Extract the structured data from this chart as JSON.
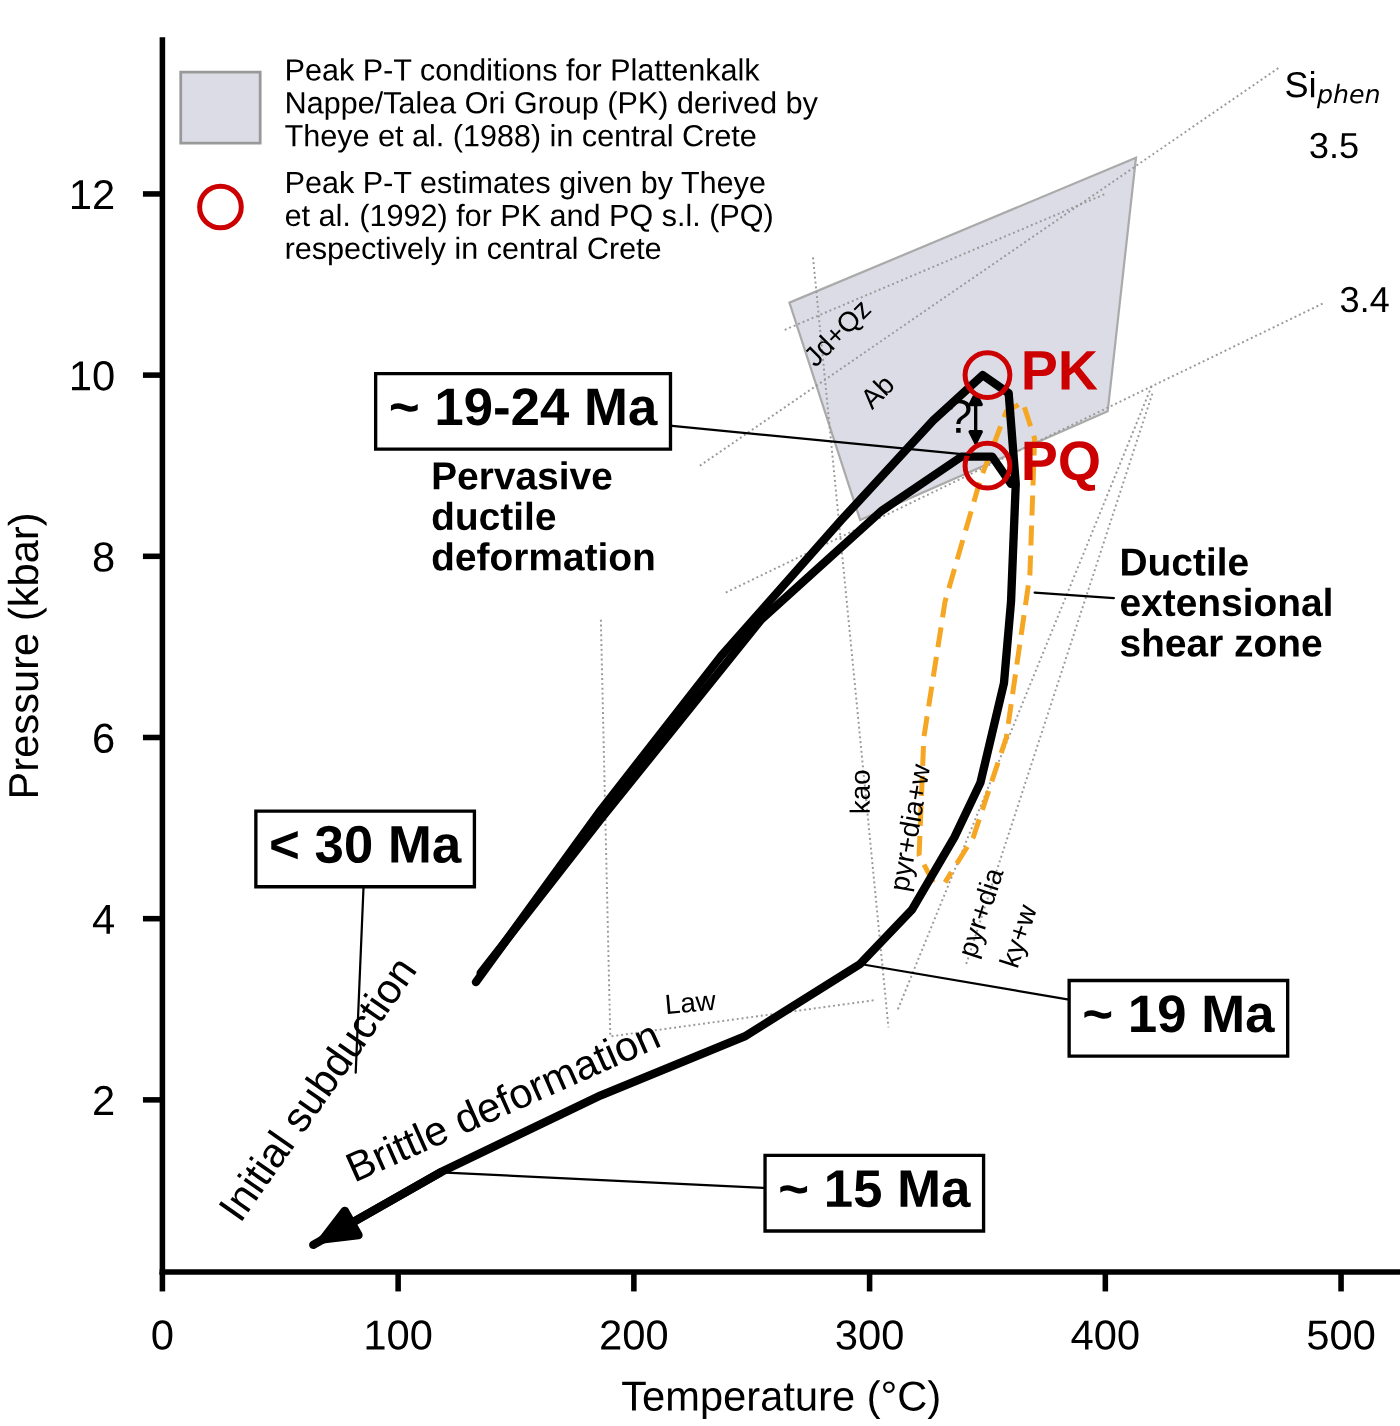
{
  "chart_data": {
    "type": "line",
    "xlabel": "Temperature (°C)",
    "ylabel": "Pressure (kbar)",
    "xlim": [
      0,
      525
    ],
    "ylim": [
      0.1,
      13.7
    ],
    "xticks": [
      0,
      100,
      200,
      300,
      400,
      500
    ],
    "yticks": [
      2,
      4,
      6,
      8,
      10,
      12
    ],
    "grid": false,
    "legend": "top left",
    "series": [
      {
        "type": "area",
        "name": "Peak P-T conditions for Plattenkalk\nNappe/Talea Ori Group (PK) derived by\nTheye et al. (1988) in central Crete",
        "color": "#dcdce6",
        "x": [
          266,
          413,
          401,
          296
        ],
        "values": [
          10.8,
          12.4,
          9.6,
          8.4
        ]
      },
      {
        "color": "#999999",
        "line_style": "dotted",
        "x": [
          228,
          474
        ],
        "values": [
          9.0,
          13.4
        ]
      },
      {
        "color": "#999999",
        "line_style": "dotted",
        "x": [
          239,
          493
        ],
        "values": [
          7.6,
          10.8
        ]
      },
      {
        "color": "#999999",
        "line_style": "dotted",
        "x": [
          264,
          400
        ],
        "values": [
          10.5,
          12.0
        ]
      },
      {
        "color": "#999999",
        "line_style": "dotted",
        "x": [
          276,
          308
        ],
        "values": [
          11.3,
          2.8
        ]
      },
      {
        "color": "#999999",
        "line_style": "dotted",
        "x": [
          312,
          420
        ],
        "values": [
          3.0,
          9.9
        ]
      },
      {
        "color": "#999999",
        "line_style": "dotted",
        "x": [
          341,
          420
        ],
        "values": [
          3.5,
          9.8
        ]
      },
      {
        "color": "#999999",
        "line_style": "dotted",
        "x": [
          186,
          190,
          302
        ],
        "values": [
          7.3,
          2.7,
          3.1
        ]
      },
      {
        "color": "#f5a623",
        "line_style": "dashed",
        "x": [
          327,
          321,
          323,
          332,
          347,
          358,
          365,
          370,
          368,
          358,
          344,
          332
        ],
        "values": [
          4.4,
          4.7,
          6.0,
          7.5,
          8.85,
          9.6,
          9.7,
          9.3,
          7.8,
          6.0,
          4.9,
          4.4
        ]
      },
      {
        "color": "#000000",
        "line_style": "solid",
        "x": [
          133,
          186,
          237,
          288,
          327,
          348,
          359,
          362,
          360,
          357,
          347,
          336,
          318,
          296,
          247,
          186,
          118,
          64
        ],
        "values": [
          3.3,
          5.2,
          6.9,
          8.4,
          9.5,
          10.0,
          9.8,
          8.8,
          7.5,
          6.6,
          5.5,
          4.9,
          4.1,
          3.5,
          2.7,
          2.05,
          1.2,
          0.4
        ]
      },
      {
        "color": "#000000",
        "line_style": "solid",
        "x": [
          135,
          186,
          254,
          305,
          339,
          352,
          360
        ],
        "values": [
          3.4,
          5.1,
          7.3,
          8.5,
          9.1,
          9.1,
          8.8
        ]
      },
      {
        "type": "scatter",
        "name": "Peak P-T estimates given by Theye\net al. (1992) for PK and PQ s.l. (PQ)\nrespectively in central Crete",
        "color": "#cc0000",
        "marker": "circle",
        "x": [
          350,
          350
        ],
        "values": [
          10,
          9
        ]
      }
    ],
    "annotations": [
      {
        "text": "~ 19-24 Ma",
        "x": 350,
        "y": 9.1
      },
      {
        "text": "~ 19 Ma",
        "x": 296,
        "y": 3.5
      },
      {
        "text": "~ 15 Ma",
        "x": 118,
        "y": 1.2
      },
      "< 30 Ma",
      "Initial subduction",
      "Brittle deformation",
      "Pervasive\nductile\ndeformation",
      "Ductile\nextensional\nshear zone",
      "?",
      {
        "text": "PK",
        "x": 350,
        "y": 10
      },
      {
        "text": "PQ",
        "x": 350,
        "y": 9
      },
      "Si$_{phen}$",
      "3.5",
      "3.4",
      "Jd+Qz",
      "Ab",
      "kao",
      "pyr+dia+w",
      "pyr+dia",
      "ky+w",
      "Law"
    ]
  }
}
